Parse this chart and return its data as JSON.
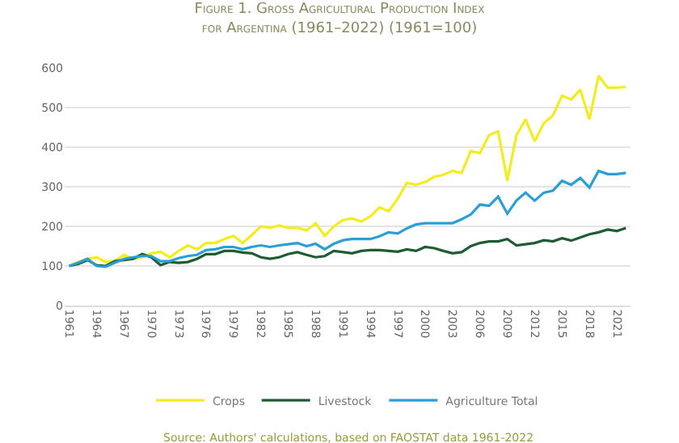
{
  "chart_data": {
    "type": "line",
    "title": "Figure 1. Gross Agricultural Production Index for Argentina (1961–2022) (1961=100)",
    "x": [
      1961,
      1962,
      1963,
      1964,
      1965,
      1966,
      1967,
      1968,
      1969,
      1970,
      1971,
      1972,
      1973,
      1974,
      1975,
      1976,
      1977,
      1978,
      1979,
      1980,
      1981,
      1982,
      1983,
      1984,
      1985,
      1986,
      1987,
      1988,
      1989,
      1990,
      1991,
      1992,
      1993,
      1994,
      1995,
      1996,
      1997,
      1998,
      1999,
      2000,
      2001,
      2002,
      2003,
      2004,
      2005,
      2006,
      2007,
      2008,
      2009,
      2010,
      2011,
      2012,
      2013,
      2014,
      2015,
      2016,
      2017,
      2018,
      2019,
      2020,
      2021,
      2022
    ],
    "series": [
      {
        "name": "Crops",
        "color": "#f5ec1e",
        "values": [
          100,
          110,
          118,
          122,
          110,
          112,
          128,
          118,
          122,
          132,
          136,
          122,
          138,
          152,
          142,
          158,
          158,
          168,
          176,
          158,
          178,
          200,
          196,
          202,
          196,
          196,
          190,
          208,
          176,
          200,
          216,
          220,
          212,
          225,
          248,
          238,
          270,
          310,
          305,
          312,
          325,
          330,
          340,
          335,
          390,
          385,
          430,
          440,
          315,
          430,
          470,
          415,
          460,
          480,
          530,
          520,
          545,
          470,
          580,
          550,
          550,
          552
        ]
      },
      {
        "name": "Livestock",
        "color": "#1f5c34",
        "values": [
          100,
          105,
          115,
          102,
          100,
          112,
          115,
          118,
          130,
          122,
          102,
          110,
          108,
          110,
          118,
          130,
          130,
          138,
          138,
          134,
          132,
          122,
          118,
          122,
          130,
          135,
          128,
          122,
          125,
          138,
          135,
          132,
          138,
          140,
          140,
          138,
          136,
          142,
          138,
          148,
          145,
          138,
          132,
          135,
          150,
          158,
          162,
          162,
          168,
          152,
          155,
          158,
          165,
          162,
          170,
          164,
          172,
          180,
          185,
          192,
          188,
          196
        ]
      },
      {
        "name": "Agriculture Total",
        "color": "#2a9fd6",
        "values": [
          100,
          108,
          118,
          100,
          98,
          108,
          118,
          122,
          125,
          125,
          112,
          112,
          120,
          125,
          128,
          140,
          142,
          148,
          148,
          142,
          148,
          152,
          148,
          152,
          155,
          158,
          150,
          156,
          142,
          156,
          165,
          168,
          168,
          168,
          175,
          185,
          182,
          195,
          205,
          208,
          208,
          208,
          208,
          218,
          230,
          255,
          252,
          275,
          232,
          265,
          285,
          265,
          285,
          290,
          315,
          305,
          322,
          298,
          340,
          332,
          332,
          335
        ]
      }
    ],
    "xlim": [
      1960.5,
      2022.5
    ],
    "xticks": [
      1961,
      1964,
      1967,
      1970,
      1973,
      1976,
      1979,
      1982,
      1985,
      1988,
      1991,
      1994,
      1997,
      2000,
      2003,
      2006,
      2009,
      2012,
      2015,
      2018,
      2021
    ],
    "ylim": [
      0,
      600
    ],
    "yticks": [
      0,
      100,
      200,
      300,
      400,
      500,
      600
    ],
    "grid": "y",
    "legend": "bottom",
    "marker": "none",
    "line_style": "solid",
    "annotations": [
      "Source: Authors' calculations, based on FAOSTAT data 1961-2022"
    ]
  }
}
